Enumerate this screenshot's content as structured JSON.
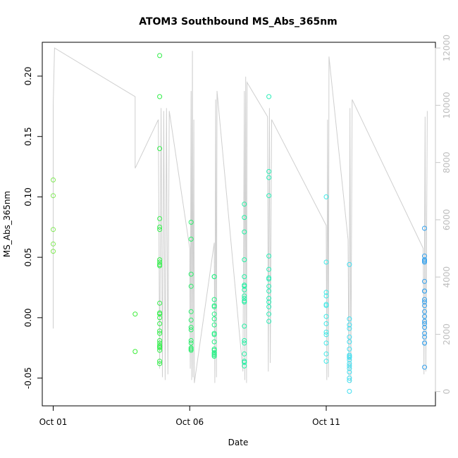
{
  "chart_data": {
    "type": "scatter",
    "title": "ATOM3 Southbound MS_Abs_365nm",
    "xlabel": "Date",
    "ylabel": "MS_Abs_365nm",
    "xlim": [
      -0.4,
      14.0
    ],
    "ylim": [
      -0.073,
      0.228
    ],
    "y2lim": [
      -500,
      12200
    ],
    "x_ticks": [
      {
        "value": 0,
        "label": "Oct 01"
      },
      {
        "value": 5,
        "label": "Oct 06"
      },
      {
        "value": 10,
        "label": "Oct 11"
      }
    ],
    "y_ticks": [
      {
        "value": -0.05,
        "label": "-0.05"
      },
      {
        "value": 0.0,
        "label": "0.00"
      },
      {
        "value": 0.05,
        "label": "0.05"
      },
      {
        "value": 0.1,
        "label": "0.10"
      },
      {
        "value": 0.15,
        "label": "0.15"
      },
      {
        "value": 0.2,
        "label": "0.20"
      }
    ],
    "y2_ticks": [
      {
        "value": 0,
        "label": "0"
      },
      {
        "value": 2000,
        "label": "2000"
      },
      {
        "value": 4000,
        "label": "4000"
      },
      {
        "value": 6000,
        "label": "6000"
      },
      {
        "value": 8000,
        "label": "8000"
      },
      {
        "value": 10000,
        "label": "10000"
      },
      {
        "value": 12000,
        "label": "12000"
      }
    ],
    "point_color_scale": [
      "#88e858",
      "#33ee33",
      "#22f0a0",
      "#44e8f0",
      "#3399ee"
    ],
    "line_color": "#cfcfcf",
    "points": [
      [
        0.0,
        0.114
      ],
      [
        0.0,
        0.101
      ],
      [
        0.0,
        0.073
      ],
      [
        0.0,
        0.061
      ],
      [
        0.0,
        0.055
      ],
      [
        3.0,
        0.003
      ],
      [
        3.0,
        -0.028
      ],
      [
        3.9,
        0.217
      ],
      [
        3.9,
        0.183
      ],
      [
        3.9,
        0.14
      ],
      [
        3.9,
        0.082
      ],
      [
        3.9,
        0.075
      ],
      [
        3.9,
        0.073
      ],
      [
        3.9,
        0.048
      ],
      [
        3.9,
        0.046
      ],
      [
        3.9,
        0.044
      ],
      [
        3.9,
        0.043
      ],
      [
        3.9,
        0.012
      ],
      [
        3.9,
        0.004
      ],
      [
        3.9,
        0.003
      ],
      [
        3.9,
        0.0
      ],
      [
        3.9,
        -0.005
      ],
      [
        3.9,
        -0.011
      ],
      [
        3.9,
        -0.013
      ],
      [
        3.9,
        -0.019
      ],
      [
        3.9,
        -0.021
      ],
      [
        3.9,
        -0.023
      ],
      [
        3.9,
        -0.024
      ],
      [
        3.9,
        -0.025
      ],
      [
        3.9,
        -0.027
      ],
      [
        3.9,
        -0.036
      ],
      [
        3.9,
        -0.038
      ],
      [
        5.05,
        0.079
      ],
      [
        5.05,
        0.065
      ],
      [
        5.05,
        0.036
      ],
      [
        5.05,
        0.026
      ],
      [
        5.05,
        0.005
      ],
      [
        5.05,
        -0.002
      ],
      [
        5.05,
        -0.008
      ],
      [
        5.05,
        -0.01
      ],
      [
        5.05,
        -0.019
      ],
      [
        5.05,
        -0.021
      ],
      [
        5.05,
        -0.025
      ],
      [
        5.05,
        -0.026
      ],
      [
        5.05,
        -0.027
      ],
      [
        5.9,
        0.034
      ],
      [
        5.9,
        0.034
      ],
      [
        5.9,
        0.015
      ],
      [
        5.9,
        0.01
      ],
      [
        5.9,
        0.009
      ],
      [
        5.9,
        0.003
      ],
      [
        5.9,
        -0.001
      ],
      [
        5.9,
        -0.006
      ],
      [
        5.9,
        -0.013
      ],
      [
        5.9,
        -0.014
      ],
      [
        5.9,
        -0.02
      ],
      [
        5.9,
        -0.026
      ],
      [
        5.9,
        -0.027
      ],
      [
        5.9,
        -0.029
      ],
      [
        5.9,
        -0.03
      ],
      [
        5.9,
        -0.031
      ],
      [
        5.9,
        -0.032
      ],
      [
        7.0,
        0.094
      ],
      [
        7.0,
        0.083
      ],
      [
        7.0,
        0.071
      ],
      [
        7.0,
        0.048
      ],
      [
        7.0,
        0.034
      ],
      [
        7.0,
        0.027
      ],
      [
        7.0,
        0.026
      ],
      [
        7.0,
        0.023
      ],
      [
        7.0,
        0.018
      ],
      [
        7.0,
        0.016
      ],
      [
        7.0,
        0.014
      ],
      [
        7.0,
        0.013
      ],
      [
        7.0,
        -0.007
      ],
      [
        7.0,
        -0.019
      ],
      [
        7.0,
        -0.021
      ],
      [
        7.0,
        -0.03
      ],
      [
        7.0,
        -0.036
      ],
      [
        7.0,
        -0.037
      ],
      [
        7.0,
        -0.04
      ],
      [
        7.9,
        0.183
      ],
      [
        7.9,
        0.121
      ],
      [
        7.9,
        0.116
      ],
      [
        7.9,
        0.101
      ],
      [
        7.9,
        0.051
      ],
      [
        7.9,
        0.04
      ],
      [
        7.9,
        0.033
      ],
      [
        7.9,
        0.032
      ],
      [
        7.9,
        0.026
      ],
      [
        7.9,
        0.022
      ],
      [
        7.9,
        0.016
      ],
      [
        7.9,
        0.013
      ],
      [
        7.9,
        0.009
      ],
      [
        7.9,
        0.003
      ],
      [
        7.9,
        -0.003
      ],
      [
        10.0,
        0.1
      ],
      [
        10.0,
        0.046
      ],
      [
        10.0,
        0.021
      ],
      [
        10.0,
        0.018
      ],
      [
        10.0,
        0.011
      ],
      [
        10.0,
        0.01
      ],
      [
        10.0,
        0.001
      ],
      [
        10.0,
        -0.005
      ],
      [
        10.0,
        -0.012
      ],
      [
        10.0,
        -0.014
      ],
      [
        10.0,
        -0.021
      ],
      [
        10.0,
        -0.03
      ],
      [
        10.0,
        -0.036
      ],
      [
        10.85,
        0.044
      ],
      [
        10.85,
        -0.001
      ],
      [
        10.85,
        -0.006
      ],
      [
        10.85,
        -0.009
      ],
      [
        10.85,
        -0.016
      ],
      [
        10.85,
        -0.02
      ],
      [
        10.85,
        -0.026
      ],
      [
        10.85,
        -0.031
      ],
      [
        10.85,
        -0.032
      ],
      [
        10.85,
        -0.033
      ],
      [
        10.85,
        -0.035
      ],
      [
        10.85,
        -0.038
      ],
      [
        10.85,
        -0.04
      ],
      [
        10.85,
        -0.042
      ],
      [
        10.85,
        -0.045
      ],
      [
        10.85,
        -0.05
      ],
      [
        10.85,
        -0.052
      ],
      [
        10.85,
        -0.061
      ],
      [
        13.6,
        0.074
      ],
      [
        13.6,
        0.051
      ],
      [
        13.6,
        0.048
      ],
      [
        13.6,
        0.047
      ],
      [
        13.6,
        0.046
      ],
      [
        13.6,
        0.03
      ],
      [
        13.6,
        0.022
      ],
      [
        13.6,
        0.022
      ],
      [
        13.6,
        0.015
      ],
      [
        13.6,
        0.013
      ],
      [
        13.6,
        0.01
      ],
      [
        13.6,
        0.005
      ],
      [
        13.6,
        0.001
      ],
      [
        13.6,
        -0.003
      ],
      [
        13.6,
        -0.005
      ],
      [
        13.6,
        -0.008
      ],
      [
        13.6,
        -0.013
      ],
      [
        13.6,
        -0.016
      ],
      [
        13.6,
        -0.021
      ],
      [
        13.6,
        -0.021
      ],
      [
        13.6,
        -0.041
      ]
    ],
    "secondary_line_vertices": [
      [
        0.0,
        2200
      ],
      [
        0.0,
        10000
      ],
      [
        0.05,
        12000
      ],
      [
        3.0,
        10300
      ],
      [
        3.0,
        7800
      ],
      [
        3.85,
        9500
      ],
      [
        3.9,
        800
      ],
      [
        3.95,
        9900
      ],
      [
        4.0,
        500
      ],
      [
        4.05,
        9800
      ],
      [
        4.1,
        400
      ],
      [
        4.15,
        9900
      ],
      [
        4.2,
        600
      ],
      [
        4.25,
        9800
      ],
      [
        5.0,
        5000
      ],
      [
        5.02,
        800
      ],
      [
        5.05,
        10500
      ],
      [
        5.07,
        400
      ],
      [
        5.1,
        11900
      ],
      [
        5.12,
        500
      ],
      [
        5.15,
        9500
      ],
      [
        5.17,
        300
      ],
      [
        5.9,
        5200
      ],
      [
        5.92,
        300
      ],
      [
        5.95,
        10200
      ],
      [
        5.98,
        500
      ],
      [
        6.0,
        10500
      ],
      [
        6.95,
        700
      ],
      [
        7.0,
        10500
      ],
      [
        7.02,
        400
      ],
      [
        7.05,
        11000
      ],
      [
        7.08,
        300
      ],
      [
        7.1,
        10800
      ],
      [
        7.85,
        9600
      ],
      [
        7.88,
        700
      ],
      [
        7.92,
        9900
      ],
      [
        7.95,
        1000
      ],
      [
        8.0,
        9500
      ],
      [
        10.0,
        5800
      ],
      [
        10.02,
        400
      ],
      [
        10.05,
        9500
      ],
      [
        10.08,
        500
      ],
      [
        10.1,
        11700
      ],
      [
        10.8,
        5300
      ],
      [
        10.83,
        500
      ],
      [
        10.87,
        9900
      ],
      [
        10.9,
        300
      ],
      [
        10.95,
        10200
      ],
      [
        13.55,
        5000
      ],
      [
        13.58,
        600
      ],
      [
        13.62,
        9600
      ],
      [
        13.65,
        700
      ],
      [
        13.7,
        9800
      ]
    ]
  }
}
